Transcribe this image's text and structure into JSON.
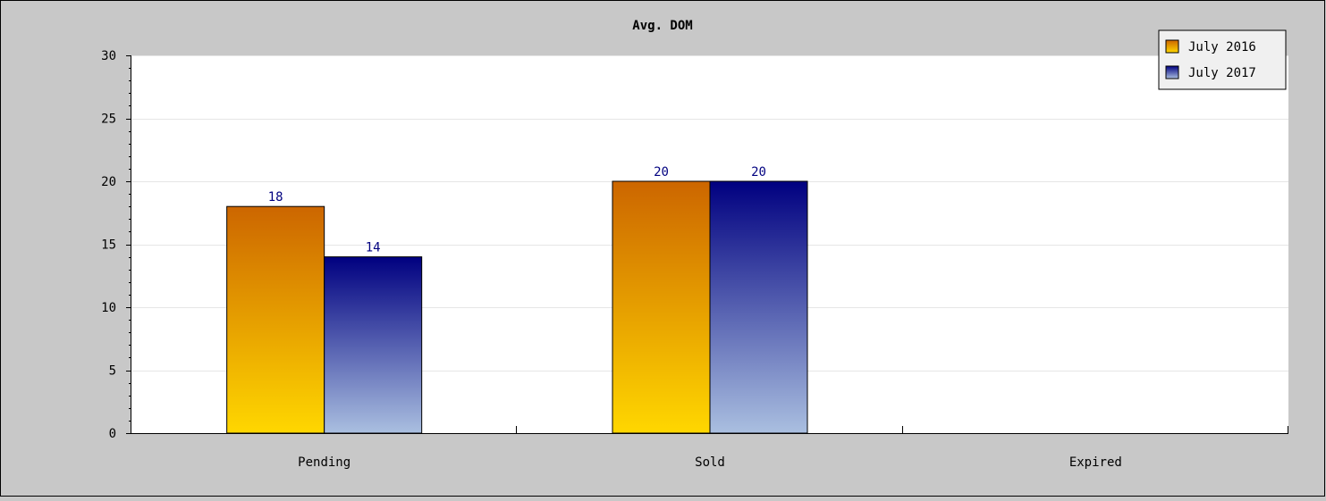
{
  "chart_data": {
    "type": "bar",
    "title": "Avg. DOM",
    "xlabel": "",
    "ylabel": "",
    "categories": [
      "Pending",
      "Sold",
      "Expired"
    ],
    "series": [
      {
        "name": "July 2016",
        "values": [
          18,
          20,
          null
        ],
        "color_top": "#cc6600",
        "color_bottom": "#ffd700"
      },
      {
        "name": "July 2017",
        "values": [
          14,
          20,
          null
        ],
        "color_top": "#000080",
        "color_bottom": "#aabfe0"
      }
    ],
    "ylim": [
      0,
      30
    ],
    "yticks": [
      0,
      5,
      10,
      15,
      20,
      25,
      30
    ],
    "grid": true,
    "legend": "top-right",
    "data_labels": true,
    "colors": {
      "background": "#c8c8c8",
      "plot_background": "#ffffff",
      "gridline": "#e6e6e6",
      "axis": "#000000",
      "label_text": "#000080"
    }
  }
}
